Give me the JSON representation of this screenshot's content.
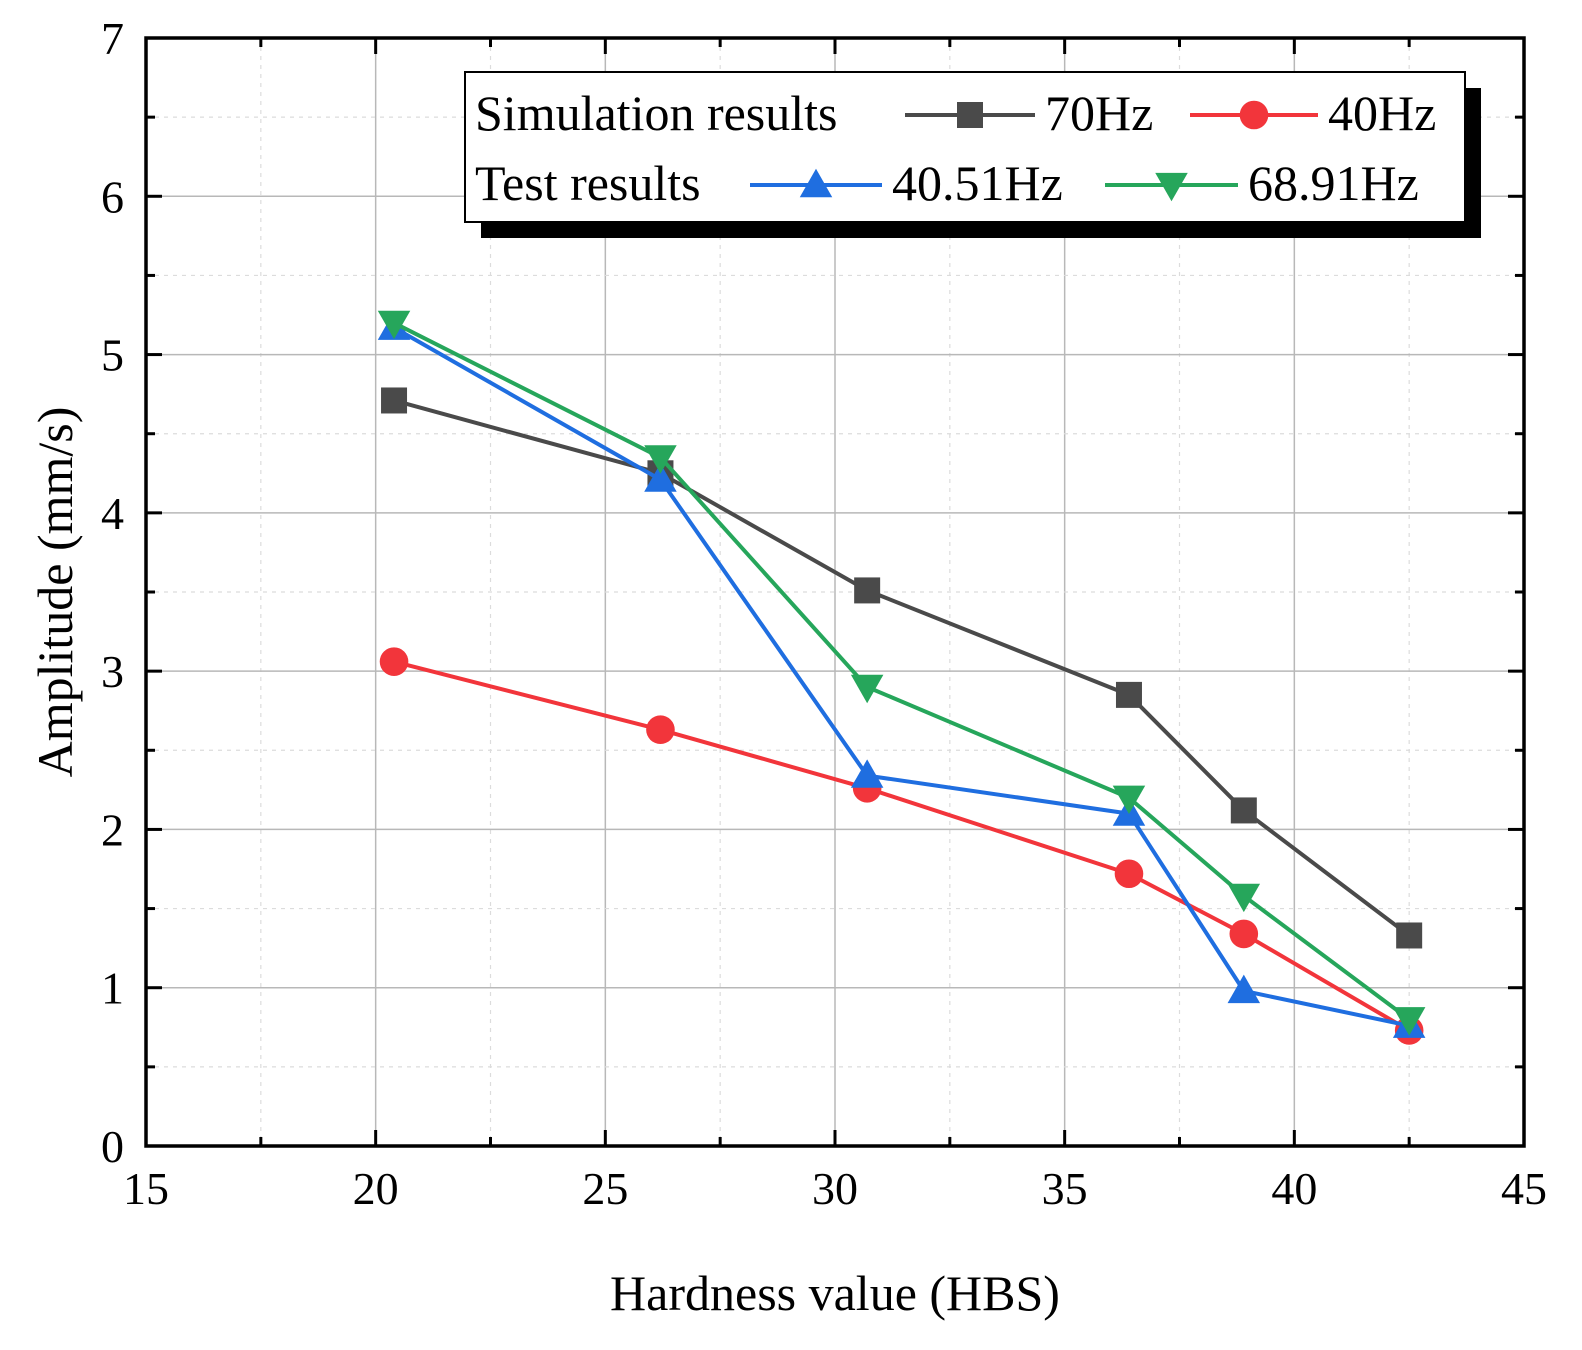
{
  "chart_data": {
    "type": "line",
    "title": "",
    "xlabel": "Hardness value (HBS)",
    "ylabel": "Amplitude (mm/s)",
    "xlim": [
      15,
      45
    ],
    "ylim": [
      0,
      7
    ],
    "xticks": [
      "15",
      "20",
      "25",
      "30",
      "35",
      "40",
      "45"
    ],
    "yticks": [
      "0",
      "1",
      "2",
      "3",
      "4",
      "5",
      "6",
      "7"
    ],
    "grid": true,
    "legend_position": "top-right",
    "legend_groups": [
      {
        "label": "Simulation results",
        "series": [
          "70Hz",
          "40Hz"
        ]
      },
      {
        "label": "Test results",
        "series": [
          "40.51Hz",
          "68.91Hz"
        ]
      }
    ],
    "series": [
      {
        "name": "70Hz",
        "color": "#4a4a4a",
        "marker": "square",
        "x": [
          20.4,
          26.2,
          30.7,
          36.4,
          38.9,
          42.5
        ],
        "y": [
          4.71,
          4.25,
          3.51,
          2.85,
          2.12,
          1.33
        ]
      },
      {
        "name": "40Hz",
        "color": "#f2353b",
        "marker": "circle",
        "x": [
          20.4,
          26.2,
          30.7,
          36.4,
          38.9,
          42.5
        ],
        "y": [
          3.06,
          2.63,
          2.26,
          1.72,
          1.34,
          0.73
        ]
      },
      {
        "name": "40.51Hz",
        "color": "#1f6ee0",
        "marker": "triangle-up",
        "x": [
          20.4,
          26.2,
          30.7,
          36.4,
          38.9,
          42.5
        ],
        "y": [
          5.17,
          4.21,
          2.34,
          2.1,
          0.98,
          0.76
        ]
      },
      {
        "name": "68.91Hz",
        "color": "#26a65b",
        "marker": "triangle-down",
        "x": [
          20.4,
          26.2,
          30.7,
          36.4,
          38.9,
          42.5
        ],
        "y": [
          5.2,
          4.35,
          2.9,
          2.2,
          1.58,
          0.8
        ]
      }
    ]
  }
}
